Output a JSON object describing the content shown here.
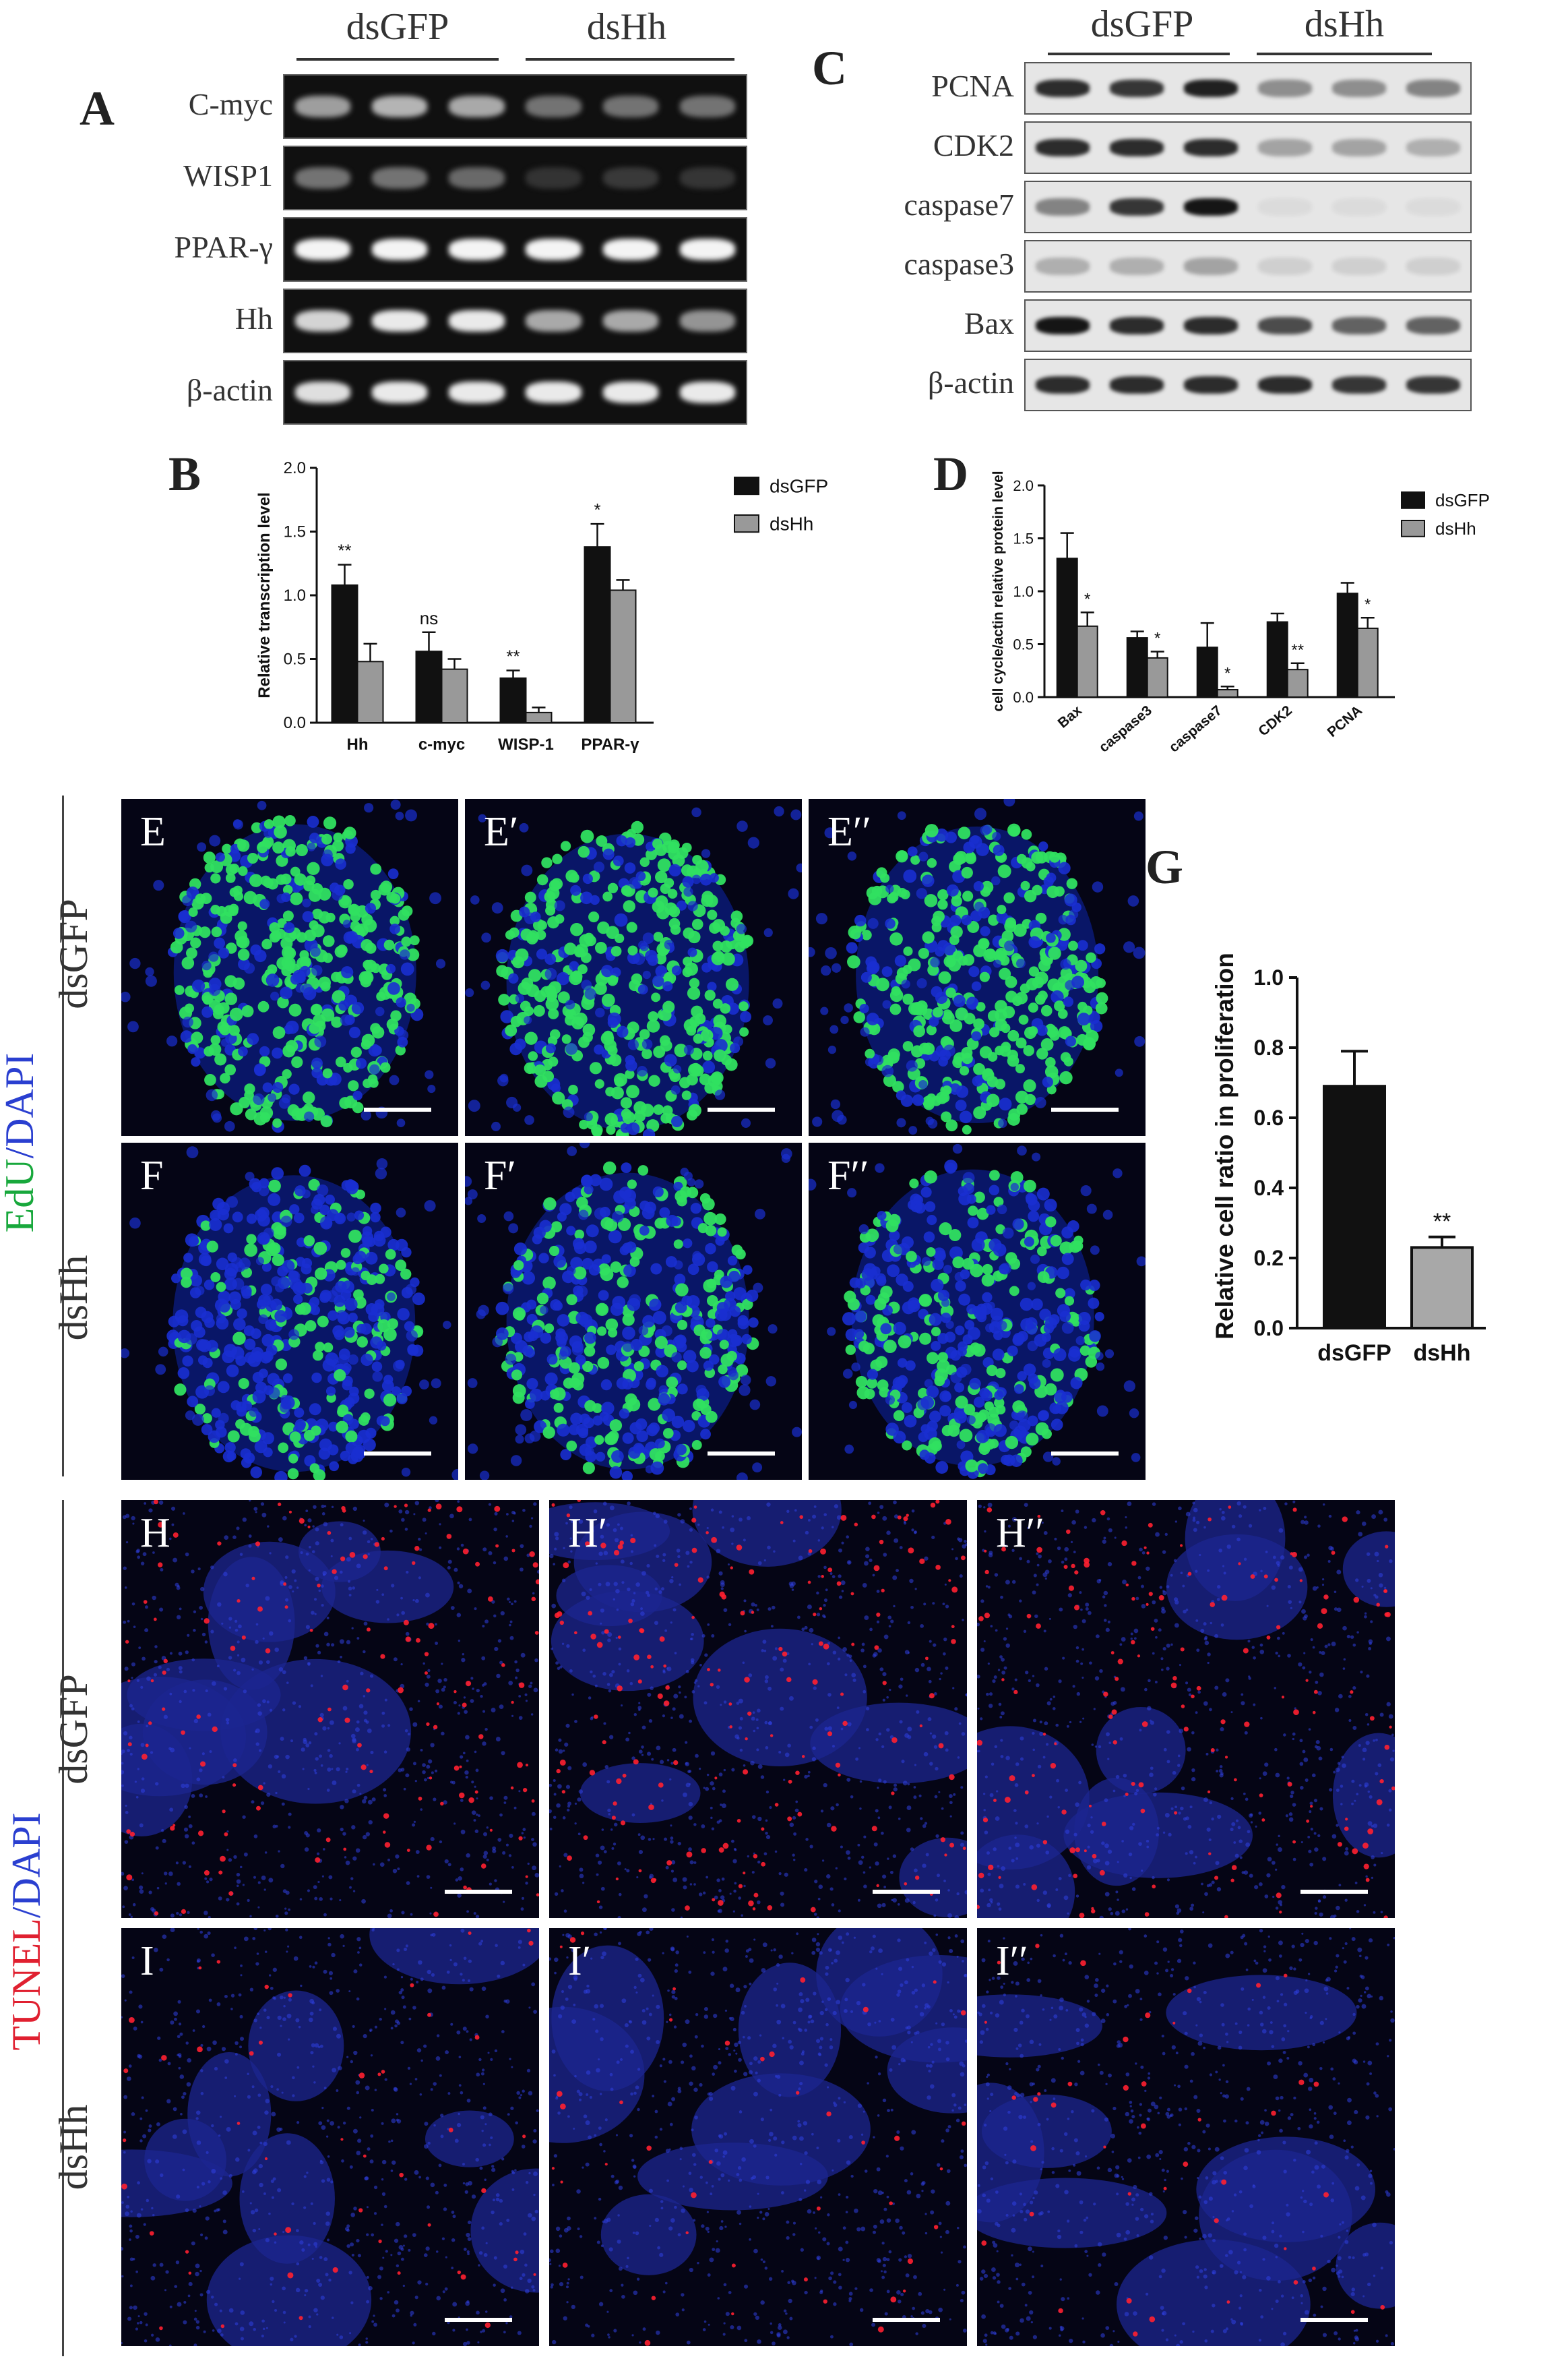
{
  "panel_letters": {
    "a": "A",
    "b": "B",
    "c": "C",
    "d": "D",
    "e": "E",
    "g": "G"
  },
  "panel_a": {
    "groups": [
      "dsGFP",
      "dsHh"
    ],
    "rows": [
      "C-myc",
      "WISP1",
      "PPAR-γ",
      "Hh",
      "β-actin"
    ],
    "band_intensity": [
      [
        0.55,
        0.65,
        0.6,
        0.35,
        0.35,
        0.35
      ],
      [
        0.35,
        0.35,
        0.3,
        0.05,
        0.08,
        0.06
      ],
      [
        0.95,
        0.95,
        0.95,
        0.95,
        0.95,
        0.95
      ],
      [
        0.8,
        0.9,
        0.9,
        0.6,
        0.6,
        0.5
      ],
      [
        0.85,
        0.9,
        0.9,
        0.9,
        0.9,
        0.9
      ]
    ]
  },
  "panel_c": {
    "groups": [
      "dsGFP",
      "dsHh"
    ],
    "rows": [
      "PCNA",
      "CDK2",
      "caspase7",
      "caspase3",
      "Bax",
      "β-actin"
    ],
    "band_intensity": [
      [
        0.85,
        0.8,
        0.9,
        0.4,
        0.4,
        0.45
      ],
      [
        0.85,
        0.85,
        0.85,
        0.3,
        0.3,
        0.25
      ],
      [
        0.45,
        0.8,
        0.95,
        0.05,
        0.05,
        0.05
      ],
      [
        0.25,
        0.25,
        0.3,
        0.1,
        0.1,
        0.1
      ],
      [
        0.95,
        0.85,
        0.85,
        0.7,
        0.6,
        0.6
      ],
      [
        0.85,
        0.85,
        0.85,
        0.85,
        0.8,
        0.8
      ]
    ]
  },
  "chart_data": [
    {
      "type": "bar",
      "panel": "B",
      "ylabel": "Relative transcription level",
      "ylim": [
        0,
        2.0
      ],
      "yticks": [
        "0.0",
        "0.5",
        "1.0",
        "1.5",
        "2.0"
      ],
      "categories": [
        "Hh",
        "c-myc",
        "WISP-1",
        "PPAR-γ"
      ],
      "series": [
        {
          "name": "dsGFP",
          "color": "#111111",
          "values": [
            1.08,
            0.56,
            0.35,
            1.38
          ],
          "errors": [
            0.16,
            0.15,
            0.06,
            0.18
          ]
        },
        {
          "name": "dsHh",
          "color": "#999999",
          "values": [
            0.48,
            0.42,
            0.08,
            1.04
          ],
          "errors": [
            0.14,
            0.08,
            0.04,
            0.08
          ]
        }
      ],
      "annotations": [
        "**",
        "ns",
        "**",
        "*"
      ],
      "legend": "top-right"
    },
    {
      "type": "bar",
      "panel": "D",
      "ylabel": "cell cycle/actin relative protein level",
      "ylim": [
        0,
        2.0
      ],
      "yticks": [
        "0.0",
        "0.5",
        "1.0",
        "1.5",
        "2.0"
      ],
      "categories": [
        "Bax",
        "caspase3",
        "caspase7",
        "CDK2",
        "PCNA"
      ],
      "series": [
        {
          "name": "dsGFP",
          "color": "#111111",
          "values": [
            1.31,
            0.56,
            0.47,
            0.71,
            0.98
          ],
          "errors": [
            0.24,
            0.06,
            0.23,
            0.08,
            0.1
          ]
        },
        {
          "name": "dsHh",
          "color": "#999999",
          "values": [
            0.67,
            0.37,
            0.07,
            0.26,
            0.65
          ],
          "errors": [
            0.13,
            0.06,
            0.03,
            0.06,
            0.1
          ]
        }
      ],
      "annotations": [
        "*",
        "*",
        "*",
        "**",
        "*"
      ],
      "legend": "top-right"
    },
    {
      "type": "bar",
      "panel": "G",
      "ylabel": "Relative cell ratio in proliferation",
      "ylim": [
        0,
        1.0
      ],
      "yticks": [
        "0.0",
        "0.2",
        "0.4",
        "0.6",
        "0.8",
        "1.0"
      ],
      "categories": [
        "dsGFP",
        "dsHh"
      ],
      "values": [
        0.69,
        0.23
      ],
      "errors": [
        0.1,
        0.03
      ],
      "colors": [
        "#111111",
        "#a8a8a8"
      ],
      "annotations": [
        "",
        "**"
      ]
    }
  ],
  "microscopy": {
    "edu_stain_label": {
      "a": "EdU",
      "b": "/DAPI"
    },
    "tunel_stain_label": {
      "a": "TUNEL",
      "b": "/DAPI"
    },
    "row_e_label": "dsGFP",
    "row_f_label": "dsHh",
    "row_h_label": "dsGFP",
    "row_i_label": "dsHh",
    "tags": {
      "e1": "E",
      "e2": "E′",
      "e3": "E′′",
      "f1": "F",
      "f2": "F′",
      "f3": "F′′",
      "h1": "H",
      "h2": "H′",
      "h3": "H′′",
      "i1": "I",
      "i2": "I′",
      "i3": "I′′"
    },
    "colors": {
      "dapi": "#1a2fd0",
      "edu": "#30e060",
      "tunel": "#ff2030",
      "background": "#050515"
    }
  }
}
